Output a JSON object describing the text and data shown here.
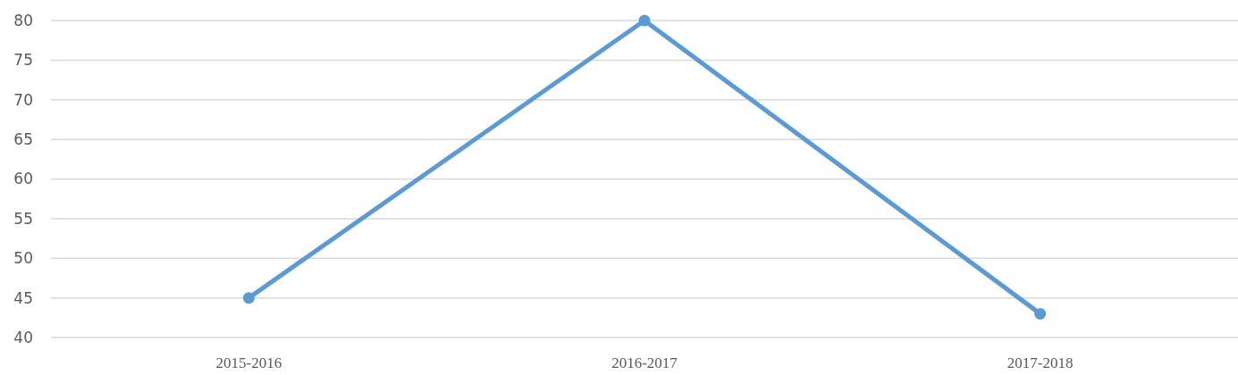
{
  "chart_data": {
    "type": "line",
    "categories": [
      "2015-2016",
      "2016-2017",
      "2017-2018"
    ],
    "series": [
      {
        "color": "#5b9bd5",
        "values": [
          45,
          80,
          43
        ]
      }
    ],
    "ylim": [
      40,
      80
    ],
    "yticks": [
      40,
      45,
      50,
      55,
      60,
      65,
      70,
      75,
      80
    ],
    "grid": "y",
    "marker": "circle",
    "line_style": "solid"
  }
}
